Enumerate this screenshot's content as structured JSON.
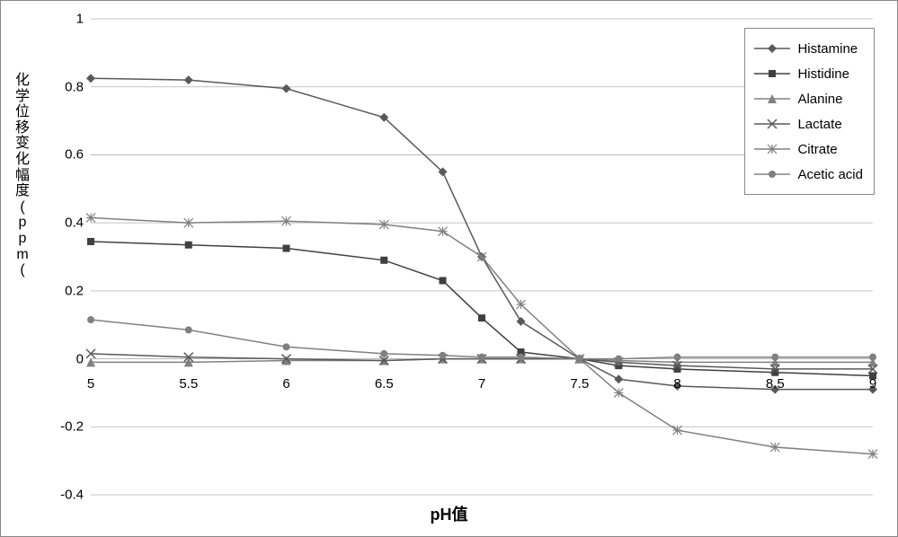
{
  "chart": {
    "type": "line",
    "ylabel_lines": [
      "化",
      "学",
      "位",
      "移",
      "变",
      "化",
      "幅",
      "度",
      "(",
      "p",
      "p",
      "m",
      "("
    ],
    "xlabel": "pH值",
    "xlim": [
      5,
      9
    ],
    "ylim": [
      -0.4,
      1
    ],
    "xticks": [
      5,
      5.5,
      6,
      6.5,
      7,
      7.5,
      8,
      8.5,
      9
    ],
    "yticks": [
      -0.4,
      -0.2,
      0,
      0.2,
      0.4,
      0.6,
      0.8,
      1
    ],
    "x_points": [
      5,
      5.5,
      6,
      6.5,
      6.8,
      7.0,
      7.2,
      7.5,
      7.7,
      8,
      8.5,
      9
    ],
    "border_color": "#888888",
    "gridline_color": "#b0b0b0",
    "line_width": 1.5,
    "marker_size": 5,
    "series": [
      {
        "name": "Histamine",
        "marker": "diamond",
        "color": "#595959",
        "values": [
          0.825,
          0.82,
          0.795,
          0.71,
          0.55,
          0.3,
          0.11,
          0.0,
          -0.06,
          -0.08,
          -0.09,
          -0.09
        ]
      },
      {
        "name": "Histidine",
        "marker": "square",
        "color": "#404040",
        "values": [
          0.345,
          0.335,
          0.325,
          0.29,
          0.23,
          0.12,
          0.02,
          0.0,
          -0.02,
          -0.03,
          -0.04,
          -0.05
        ]
      },
      {
        "name": "Alanine",
        "marker": "triangle",
        "color": "#808080",
        "values": [
          -0.01,
          -0.01,
          -0.005,
          -0.005,
          0.0,
          0.0,
          0.0,
          0.0,
          -0.005,
          -0.01,
          -0.01,
          -0.01
        ]
      },
      {
        "name": "Lactate",
        "marker": "x",
        "color": "#595959",
        "values": [
          0.015,
          0.005,
          0.0,
          -0.005,
          0.0,
          0.0,
          0.0,
          0.0,
          -0.01,
          -0.02,
          -0.03,
          -0.03
        ]
      },
      {
        "name": "Citrate",
        "marker": "asterisk",
        "color": "#808080",
        "values": [
          0.415,
          0.4,
          0.405,
          0.395,
          0.375,
          0.3,
          0.16,
          0.0,
          -0.1,
          -0.21,
          -0.26,
          -0.28
        ]
      },
      {
        "name": "Acetic acid",
        "marker": "circle",
        "color": "#808080",
        "values": [
          0.115,
          0.085,
          0.035,
          0.015,
          0.01,
          0.005,
          0.005,
          0.0,
          0.0,
          0.005,
          0.005,
          0.005
        ]
      }
    ],
    "legend_fontsize": 15,
    "tick_fontsize": 15
  }
}
